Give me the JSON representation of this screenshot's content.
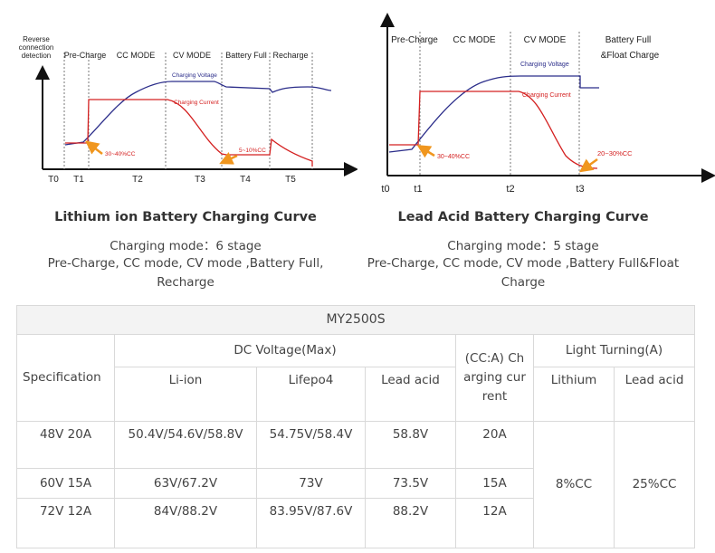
{
  "charts": {
    "li": {
      "title": "Lithium ion Battery Charging Curve",
      "mode": "Charging mode：6 stage",
      "desc": "Pre-Charge, CC mode, CV mode ,Battery Full, Recharge",
      "stages": [
        "Reverse connection detection",
        "Pre-Charge",
        "CC MODE",
        "CV MODE",
        "Battery Full",
        "Recharge"
      ],
      "times": [
        "T0",
        "T1",
        "T2",
        "T3",
        "T4",
        "T5"
      ],
      "voltage_label": "Charging Voltage",
      "current_label": "Charging Current",
      "annotations": [
        "30~40%CC",
        "5~10%CC"
      ]
    },
    "pb": {
      "title": "Lead Acid Battery Charging Curve",
      "mode": "Charging mode：5 stage",
      "desc": "Pre-Charge, CC mode, CV mode ,Battery Full&Float Charge",
      "stages": [
        "Pre-Charge",
        "CC MODE",
        "CV MODE",
        "Battery Full",
        "&Float Charge"
      ],
      "times": [
        "t0",
        "t1",
        "t2",
        "t3"
      ],
      "voltage_label": "Charging Voltage",
      "current_label": "Charging Current",
      "annotations": [
        "30~40%CC",
        "20~30%CC"
      ]
    }
  },
  "colors": {
    "voltage": "#2b2d8a",
    "current": "#d42020",
    "arrow": "#f0961e",
    "axis": "#111111",
    "border": "#d9d9d9"
  },
  "table": {
    "title": "MY2500S",
    "h_spec": "Specification",
    "h_dc": "DC Voltage(Max)",
    "h_cc": "(CC:A) Charging current",
    "h_light": "Light Turning(A)",
    "h_liion": "Li-ion",
    "h_lifepo4": "Lifepo4",
    "h_lead": "Lead acid",
    "h_lithium": "Lithium",
    "h_lead2": "Lead acid",
    "rows": [
      {
        "spec": "48V 20A",
        "liion": "50.4V/54.6V/58.8V",
        "lifepo4": "54.75V/58.4V",
        "lead": "58.8V",
        "cc": "20A"
      },
      {
        "spec": "60V 15A",
        "liion": "63V/67.2V",
        "lifepo4": "73V",
        "lead": "73.5V",
        "cc": "15A"
      },
      {
        "spec": "72V 12A",
        "liion": "84V/88.2V",
        "lifepo4": "83.95V/87.6V",
        "lead": "88.2V",
        "cc": "12A"
      }
    ],
    "light_lithium": "8%CC",
    "light_lead": "25%CC"
  },
  "chart_data": [
    {
      "type": "line",
      "title": "Lithium ion Battery Charging Curve",
      "x": [
        "T0",
        "T1",
        "T2",
        "T3",
        "T4",
        "T5"
      ],
      "series": [
        {
          "name": "Charging Voltage"
        },
        {
          "name": "Charging Current"
        }
      ],
      "annotations": [
        "30~40%CC",
        "5~10%CC"
      ],
      "stages": [
        "Reverse connection detection",
        "Pre-Charge",
        "CC MODE",
        "CV MODE",
        "Battery Full",
        "Recharge"
      ]
    },
    {
      "type": "line",
      "title": "Lead Acid Battery Charging Curve",
      "x": [
        "t0",
        "t1",
        "t2",
        "t3"
      ],
      "series": [
        {
          "name": "Charging Voltage"
        },
        {
          "name": "Charging Current"
        }
      ],
      "annotations": [
        "30~40%CC",
        "20~30%CC"
      ],
      "stages": [
        "Pre-Charge",
        "CC MODE",
        "CV MODE",
        "Battery Full",
        "&Float Charge"
      ]
    }
  ]
}
